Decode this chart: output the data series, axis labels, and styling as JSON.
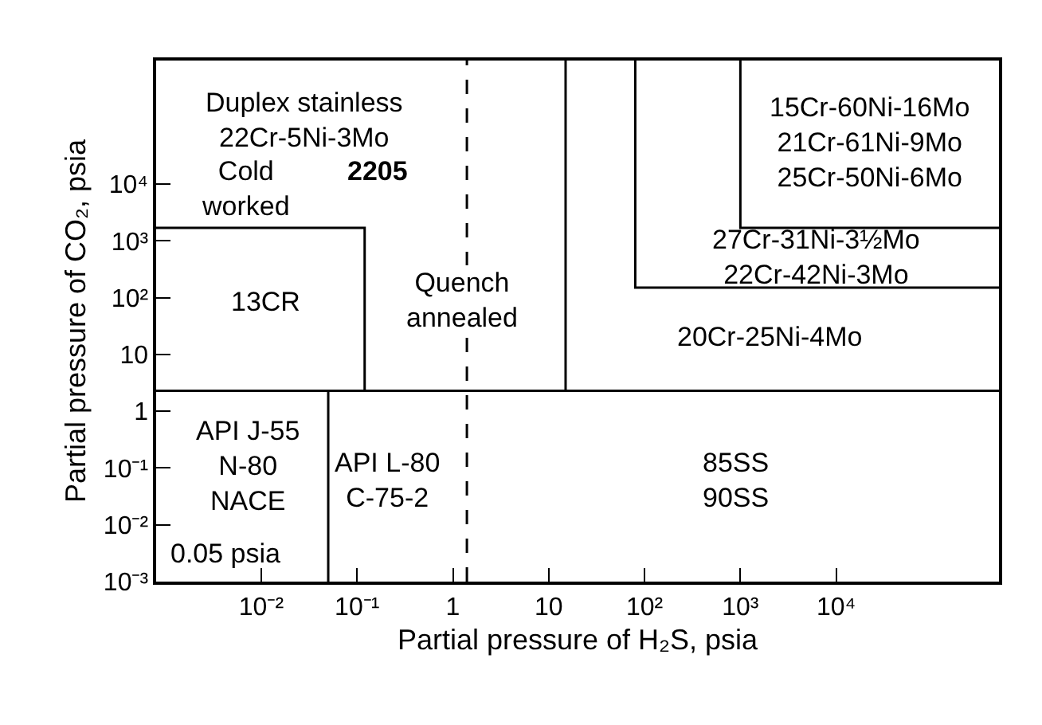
{
  "chart_data": {
    "type": "line",
    "xlabel": "Partial pressure of H₂S, psia",
    "ylabel": "Partial pressure of CO₂, psia",
    "log": "xy",
    "marker": "none",
    "xlim": [
      0.0008,
      500000
    ],
    "ylim": [
      0.001,
      1500000
    ],
    "xticks": [
      {
        "value": 0.01,
        "label": "10⁻²"
      },
      {
        "value": 0.1,
        "label": "10⁻¹"
      },
      1,
      10,
      {
        "value": 100,
        "label": "10²"
      },
      {
        "value": 1000,
        "label": "10³"
      },
      {
        "value": 10000,
        "label": "10⁴"
      }
    ],
    "yticks": [
      {
        "value": 0.001,
        "label": "10⁻³"
      },
      {
        "value": 0.01,
        "label": "10⁻²"
      },
      {
        "value": 0.1,
        "label": "10⁻¹"
      },
      1,
      10,
      {
        "value": 100,
        "label": "10²"
      },
      {
        "value": 1000,
        "label": "10³"
      },
      {
        "value": 10000,
        "label": "10⁴"
      }
    ],
    "series": [
      {
        "color": "#000000",
        "line_style": "solid",
        "x": [
          0.0008,
          500000
        ],
        "values": [
          2.3,
          2.3
        ]
      },
      {
        "color": "#000000",
        "line_style": "solid",
        "x": [
          0.05,
          0.05
        ],
        "values": [
          0.001,
          2.3
        ]
      },
      {
        "color": "#000000",
        "line_style": "solid",
        "x": [
          0.0008,
          0.12,
          0.12
        ],
        "values": [
          1700,
          1700,
          2.3
        ]
      },
      {
        "color": "#000000",
        "line_style": "dashed",
        "x": [
          1.4,
          1.4
        ],
        "values": [
          0.001,
          1500000
        ]
      },
      {
        "color": "#000000",
        "line_style": "solid",
        "x": [
          15,
          15
        ],
        "values": [
          2.3,
          1500000
        ]
      },
      {
        "color": "#000000",
        "line_style": "solid",
        "x": [
          80,
          80,
          500000
        ],
        "values": [
          1500000,
          150,
          150
        ]
      },
      {
        "color": "#000000",
        "line_style": "solid",
        "x": [
          1000,
          1000,
          500000
        ],
        "values": [
          1500000,
          1700,
          1700
        ]
      }
    ],
    "annotations": [
      "Duplex stainless\n22Cr-5Ni-3Mo",
      "Cold\nworked",
      "2205",
      "13CR",
      "Quench\nannealed",
      "15Cr-60Ni-16Mo\n21Cr-61Ni-9Mo\n25Cr-50Ni-6Mo",
      "27Cr-31Ni-3½Mo\n22Cr-42Ni-3Mo",
      "20Cr-25Ni-4Mo",
      "API J-55\nN-80\nNACE",
      "0.05 psia",
      "API L-80\nC-75-2",
      "85SS\n90SS"
    ]
  }
}
